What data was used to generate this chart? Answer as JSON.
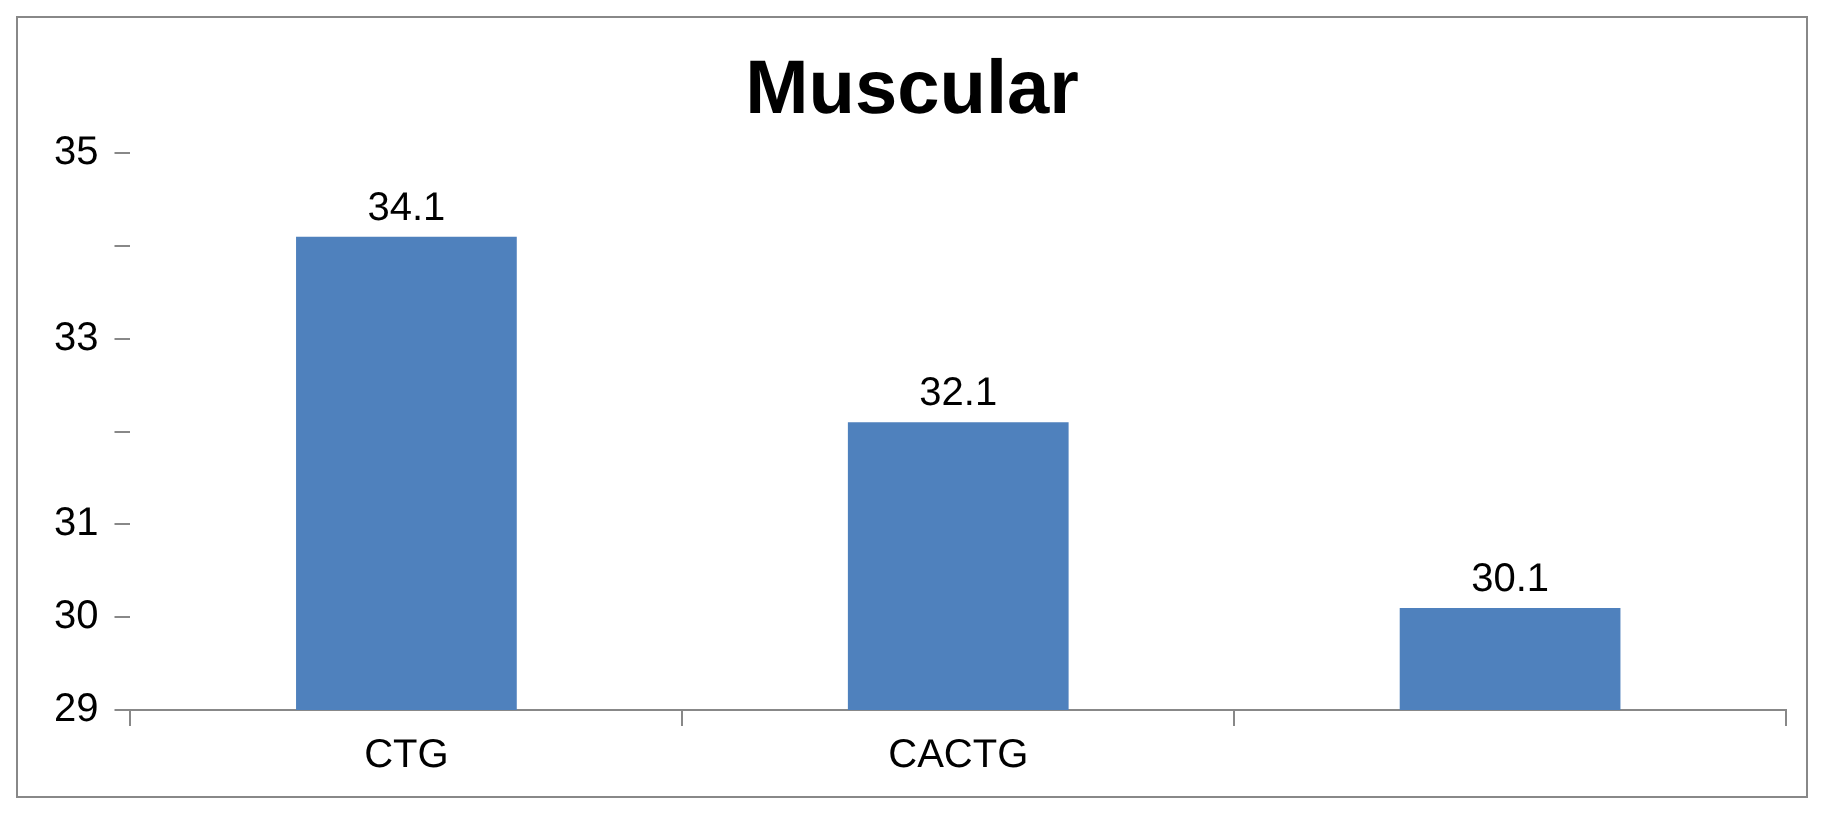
{
  "chart_data": {
    "type": "bar",
    "title": "Muscular",
    "categories": [
      "CTG",
      "CACTG",
      null
    ],
    "values": [
      34.1,
      32.1,
      30.1
    ],
    "color": "#4f81bd",
    "ylim": [
      29,
      35
    ],
    "yticks": [
      29,
      30,
      31,
      {
        "value": 32,
        "label": null
      },
      33,
      {
        "value": 34,
        "label": null
      },
      35
    ],
    "data_labels": true,
    "grid": false,
    "legend": false
  }
}
